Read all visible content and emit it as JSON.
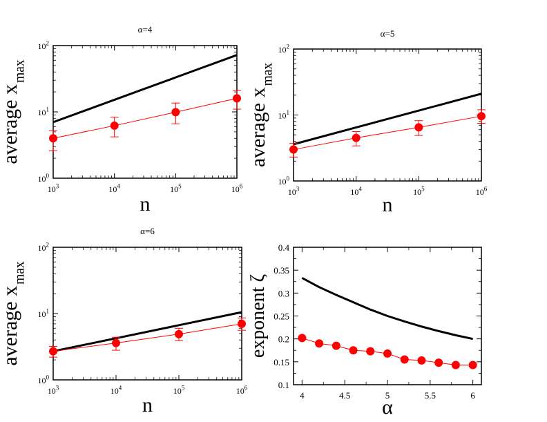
{
  "figure": {
    "background": "#ffffff"
  },
  "colors": {
    "model_line": "#000000",
    "data_series": "#ff0000",
    "axes": "#000000"
  },
  "chart_data": [
    {
      "type": "line",
      "title": "α=4",
      "xlabel": "n",
      "ylabel": "average x",
      "ylabel_sub": "max",
      "x_scale": "log",
      "y_scale": "log",
      "xlim": [
        1000,
        1000000
      ],
      "ylim": [
        1,
        100
      ],
      "x_ticks": [
        {
          "value": 1000,
          "base": "10",
          "exp": "3"
        },
        {
          "value": 10000,
          "base": "10",
          "exp": "4"
        },
        {
          "value": 100000,
          "base": "10",
          "exp": "5"
        },
        {
          "value": 1000000,
          "base": "10",
          "exp": "6"
        }
      ],
      "y_ticks": [
        {
          "value": 1,
          "base": "10",
          "exp": "0"
        },
        {
          "value": 10,
          "base": "10",
          "exp": "1"
        },
        {
          "value": 100,
          "base": "10",
          "exp": "2"
        }
      ],
      "grid": false,
      "legend": "none",
      "series": [
        {
          "kind": "line",
          "color": "#000000",
          "x": [
            1000,
            1000000
          ],
          "y": [
            7.0,
            72.0
          ]
        },
        {
          "kind": "points-errorbars",
          "color": "#ff0000",
          "x": [
            1000,
            10000,
            100000,
            1000000
          ],
          "y": [
            4.0,
            6.2,
            9.9,
            16.0
          ],
          "y_low": [
            2.6,
            4.2,
            6.6,
            11.0
          ],
          "y_high": [
            5.2,
            8.3,
            13.6,
            21.0
          ]
        }
      ]
    },
    {
      "type": "line",
      "title": "α=5",
      "xlabel": "n",
      "ylabel": "average x",
      "ylabel_sub": "max",
      "x_scale": "log",
      "y_scale": "log",
      "xlim": [
        1000,
        1000000
      ],
      "ylim": [
        1,
        100
      ],
      "x_ticks": [
        {
          "value": 1000,
          "base": "10",
          "exp": "3"
        },
        {
          "value": 10000,
          "base": "10",
          "exp": "4"
        },
        {
          "value": 100000,
          "base": "10",
          "exp": "5"
        },
        {
          "value": 1000000,
          "base": "10",
          "exp": "6"
        }
      ],
      "y_ticks": [
        {
          "value": 1,
          "base": "10",
          "exp": "0"
        },
        {
          "value": 10,
          "base": "10",
          "exp": "1"
        },
        {
          "value": 100,
          "base": "10",
          "exp": "2"
        }
      ],
      "grid": false,
      "legend": "none",
      "series": [
        {
          "kind": "line",
          "color": "#000000",
          "x": [
            1000,
            1000000
          ],
          "y": [
            3.6,
            21.0
          ]
        },
        {
          "kind": "points-errorbars",
          "color": "#ff0000",
          "x": [
            1000,
            10000,
            100000,
            1000000
          ],
          "y": [
            3.0,
            4.5,
            6.5,
            9.6
          ],
          "y_low": [
            2.3,
            3.4,
            4.9,
            7.5
          ],
          "y_high": [
            3.7,
            5.6,
            8.2,
            12.0
          ]
        }
      ]
    },
    {
      "type": "line",
      "title": "α=6",
      "xlabel": "n",
      "ylabel": "average x",
      "ylabel_sub": "max",
      "x_scale": "log",
      "y_scale": "log",
      "xlim": [
        1000,
        1000000
      ],
      "ylim": [
        1,
        100
      ],
      "x_ticks": [
        {
          "value": 1000,
          "base": "10",
          "exp": "3"
        },
        {
          "value": 10000,
          "base": "10",
          "exp": "4"
        },
        {
          "value": 100000,
          "base": "10",
          "exp": "5"
        },
        {
          "value": 1000000,
          "base": "10",
          "exp": "6"
        }
      ],
      "y_ticks": [
        {
          "value": 1,
          "base": "10",
          "exp": "0"
        },
        {
          "value": 10,
          "base": "10",
          "exp": "1"
        },
        {
          "value": 100,
          "base": "10",
          "exp": "2"
        }
      ],
      "grid": false,
      "legend": "none",
      "series": [
        {
          "kind": "line",
          "color": "#000000",
          "x": [
            1000,
            1000000
          ],
          "y": [
            2.7,
            10.5
          ]
        },
        {
          "kind": "points-errorbars",
          "color": "#ff0000",
          "x": [
            1000,
            10000,
            100000,
            1000000
          ],
          "y": [
            2.7,
            3.6,
            4.9,
            7.0
          ],
          "y_low": [
            2.2,
            2.8,
            3.9,
            5.6
          ],
          "y_high": [
            3.2,
            4.4,
            6.0,
            8.6
          ]
        }
      ]
    },
    {
      "type": "line",
      "title": "",
      "xlabel": "α",
      "ylabel": "exponent ζ",
      "ylabel_sub": "",
      "x_scale": "linear",
      "y_scale": "linear",
      "xlim": [
        3.9,
        6.1
      ],
      "ylim": [
        0.1,
        0.4
      ],
      "x_ticks": [
        {
          "value": 4,
          "label": "4"
        },
        {
          "value": 4.5,
          "label": "4.5"
        },
        {
          "value": 5,
          "label": "5"
        },
        {
          "value": 5.5,
          "label": "5.5"
        },
        {
          "value": 6,
          "label": "6"
        }
      ],
      "y_ticks": [
        {
          "value": 0.1,
          "label": "0.1"
        },
        {
          "value": 0.15,
          "label": "0.15"
        },
        {
          "value": 0.2,
          "label": "0.2"
        },
        {
          "value": 0.25,
          "label": "0.25"
        },
        {
          "value": 0.3,
          "label": "0.3"
        },
        {
          "value": 0.35,
          "label": "0.35"
        },
        {
          "value": 0.4,
          "label": "0.4"
        }
      ],
      "grid": false,
      "legend": "none",
      "series": [
        {
          "kind": "line",
          "color": "#000000",
          "x": [
            4,
            4.2,
            4.4,
            4.6,
            4.8,
            5,
            5.2,
            5.4,
            5.6,
            5.8,
            6
          ],
          "y": [
            0.333,
            0.313,
            0.296,
            0.28,
            0.264,
            0.25,
            0.238,
            0.227,
            0.217,
            0.208,
            0.2
          ]
        },
        {
          "kind": "points",
          "color": "#ff0000",
          "x": [
            4,
            4.2,
            4.4,
            4.6,
            4.8,
            5,
            5.2,
            5.4,
            5.6,
            5.8,
            6
          ],
          "y": [
            0.202,
            0.19,
            0.185,
            0.175,
            0.173,
            0.168,
            0.155,
            0.153,
            0.148,
            0.143,
            0.143
          ]
        }
      ]
    }
  ]
}
